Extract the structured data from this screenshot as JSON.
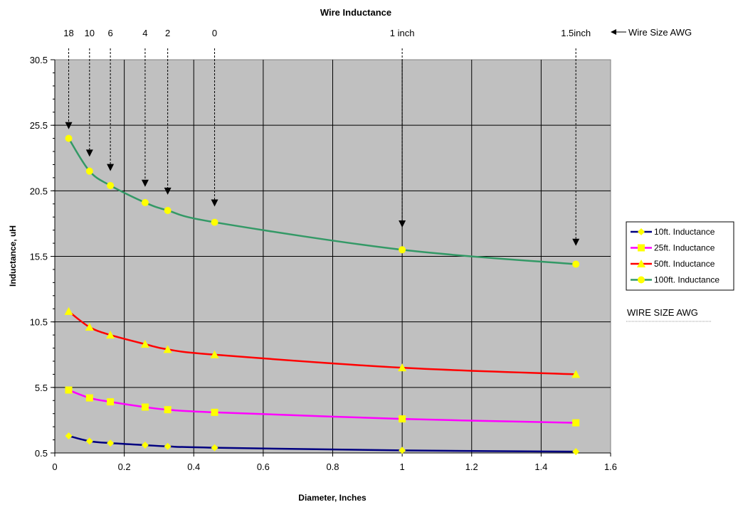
{
  "chart_data": {
    "type": "line",
    "title": "Wire Inductance",
    "xlabel": "Diameter, Inches",
    "ylabel": "Inductance, uH",
    "xlim": [
      0,
      1.6
    ],
    "ylim": [
      0.5,
      30.5
    ],
    "x_ticks": [
      "0",
      "0.2",
      "0.4",
      "0.6",
      "0.8",
      "1",
      "1.2",
      "1.4",
      "1.6"
    ],
    "y_ticks": [
      "0.5",
      "5.5",
      "10.5",
      "15.5",
      "20.5",
      "25.5",
      "30.5"
    ],
    "grid": true,
    "plot_background": "#c0c0c0",
    "x": [
      0.04,
      0.1,
      0.16,
      0.26,
      0.325,
      0.46,
      1.0,
      1.5
    ],
    "series": [
      {
        "name": "10ft. Inductance",
        "line_color": "#000080",
        "marker": "diamond",
        "marker_color": "#ffff00",
        "values": [
          1.8,
          1.4,
          1.25,
          1.1,
          1.0,
          0.9,
          0.7,
          0.6
        ]
      },
      {
        "name": "25ft. Inductance",
        "line_color": "#ff00ff",
        "marker": "square",
        "marker_color": "#ffff00",
        "values": [
          5.3,
          4.7,
          4.4,
          4.0,
          3.8,
          3.6,
          3.1,
          2.8
        ]
      },
      {
        "name": "50ft. Inductance",
        "line_color": "#ff0000",
        "marker": "triangle",
        "marker_color": "#ffff00",
        "values": [
          11.3,
          10.1,
          9.5,
          8.8,
          8.4,
          8.0,
          7.0,
          6.5
        ]
      },
      {
        "name": "100ft. Inductance",
        "line_color": "#339966",
        "marker": "circle",
        "marker_color": "#ffff00",
        "values": [
          24.5,
          22.0,
          20.9,
          19.6,
          19.0,
          18.1,
          16.0,
          14.9
        ]
      }
    ],
    "legend_position": "right",
    "awg_annotations": [
      {
        "label": "18",
        "x": 0.04,
        "arrow_to": 25.2
      },
      {
        "label": "10",
        "x": 0.1,
        "arrow_to": 23.1
      },
      {
        "label": "6",
        "x": 0.16,
        "arrow_to": 22.0
      },
      {
        "label": "4",
        "x": 0.26,
        "arrow_to": 20.8
      },
      {
        "label": "2",
        "x": 0.325,
        "arrow_to": 20.2
      },
      {
        "label": "0",
        "x": 0.46,
        "arrow_to": 19.3
      },
      {
        "label": "1 inch",
        "x": 1.0,
        "arrow_to": 17.7
      },
      {
        "label": "1.5inch",
        "x": 1.5,
        "arrow_to": 16.3
      }
    ],
    "awg_pointer_label": "Wire Size AWG",
    "side_note": "WIRE SIZE AWG"
  }
}
